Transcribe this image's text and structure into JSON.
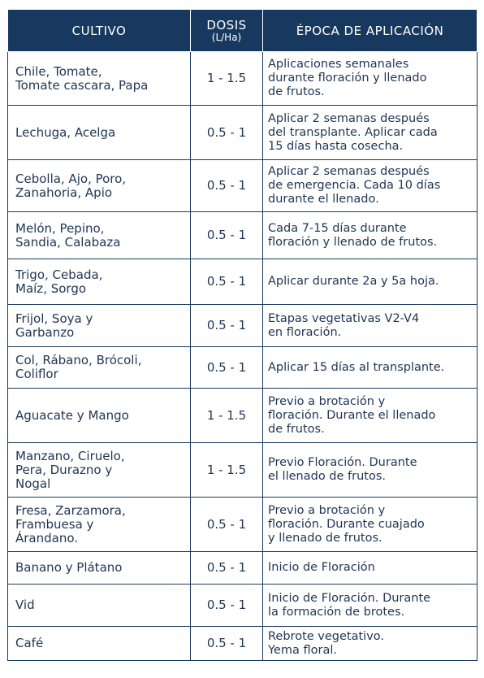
{
  "header": {
    "col1": "CULTIVO",
    "col2_main": "DOSIS",
    "col2_sub": "(L/Ha)",
    "col3": "ÉPOCA DE APLICACIÓN"
  },
  "colors": {
    "header_bg": "#17395f",
    "text": "#1f3553",
    "border": "#1a3a5c"
  },
  "rows": [
    {
      "cultivo": "Chile, Tomate,\nTomate cascara, Papa",
      "dosis": "1 - 1.5",
      "epoca": "Aplicaciones semanales\ndurante floración y llenado\nde frutos."
    },
    {
      "cultivo": "Lechuga, Acelga",
      "dosis": "0.5 - 1",
      "epoca": "Aplicar 2 semanas después\ndel transplante. Aplicar cada\n15 días hasta cosecha."
    },
    {
      "cultivo": "Cebolla, Ajo, Poro,\nZanahoria, Apio",
      "dosis": "0.5 - 1",
      "epoca": "Aplicar 2 semanas después\nde emergencia. Cada 10 días\ndurante el llenado."
    },
    {
      "cultivo": "Melón, Pepino,\nSandia, Calabaza",
      "dosis": "0.5 - 1",
      "epoca": "Cada 7-15 días durante\nfloración y llenado de frutos."
    },
    {
      "cultivo": "Trigo, Cebada,\nMaíz, Sorgo",
      "dosis": "0.5 - 1",
      "epoca": "Aplicar durante 2a y 5a hoja."
    },
    {
      "cultivo": "Frijol, Soya y\nGarbanzo",
      "dosis": "0.5 - 1",
      "epoca": "Etapas vegetativas V2-V4\nen floración."
    },
    {
      "cultivo": "Col, Rábano, Brócoli,\nColiflor",
      "dosis": "0.5 - 1",
      "epoca": "Aplicar 15 días al transplante."
    },
    {
      "cultivo": "Aguacate y Mango",
      "dosis": "1 - 1.5",
      "epoca": " Previo a brotación y\n floración. Durante el llenado\n de frutos."
    },
    {
      "cultivo": "Manzano, Ciruelo,\nPera, Durazno y\nNogal",
      "dosis": "1 - 1.5",
      "epoca": "Previo Floración. Durante\nel llenado de frutos."
    },
    {
      "cultivo": "Fresa, Zarzamora,\nFrambuesa y\nÁrandano.",
      "dosis": "0.5 - 1",
      "epoca": "Previo a brotación y\nfloración. Durante cuajado\ny llenado de frutos."
    },
    {
      "cultivo": "Banano y Plátano",
      "dosis": "0.5 - 1",
      "epoca": "Inicio de Floración"
    },
    {
      "cultivo": "Vid",
      "dosis": "0.5 - 1",
      "epoca": "Inicio de Floración. Durante\nla formación de brotes."
    },
    {
      "cultivo": "Café",
      "dosis": "0.5 - 1",
      "epoca": "Rebrote vegetativo.\nYema floral."
    }
  ]
}
